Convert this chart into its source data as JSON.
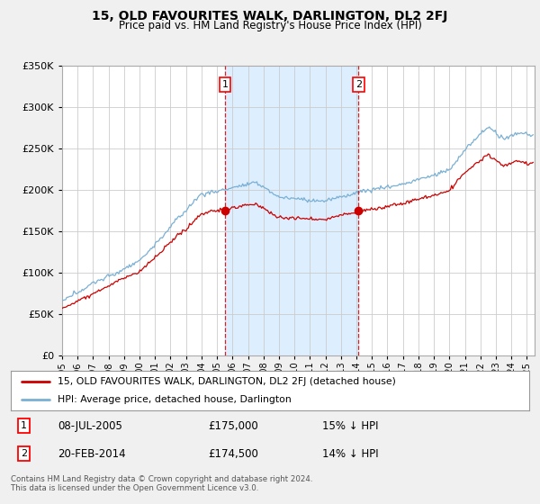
{
  "title": "15, OLD FAVOURITES WALK, DARLINGTON, DL2 2FJ",
  "subtitle": "Price paid vs. HM Land Registry's House Price Index (HPI)",
  "ylim": [
    0,
    350000
  ],
  "xlim_start": 1995.0,
  "xlim_end": 2025.5,
  "fig_bg": "#f0f0f0",
  "plot_bg": "#ffffff",
  "shade_bg": "#ddeeff",
  "grid_color": "#cccccc",
  "hpi_color": "#7ab0d4",
  "price_color": "#cc0000",
  "transaction1_x": 2005.52,
  "transaction1_price": 175000,
  "transaction2_x": 2014.13,
  "transaction2_price": 174500,
  "legend_line1": "15, OLD FAVOURITES WALK, DARLINGTON, DL2 2FJ (detached house)",
  "legend_line2": "HPI: Average price, detached house, Darlington",
  "annotation1_date": "08-JUL-2005",
  "annotation1_price": "£175,000",
  "annotation1_pct": "15% ↓ HPI",
  "annotation2_date": "20-FEB-2014",
  "annotation2_price": "£174,500",
  "annotation2_pct": "14% ↓ HPI",
  "footnote": "Contains HM Land Registry data © Crown copyright and database right 2024.\nThis data is licensed under the Open Government Licence v3.0.",
  "xtick_years": [
    1995,
    1996,
    1997,
    1998,
    1999,
    2000,
    2001,
    2002,
    2003,
    2004,
    2005,
    2006,
    2007,
    2008,
    2009,
    2010,
    2011,
    2012,
    2013,
    2014,
    2015,
    2016,
    2017,
    2018,
    2019,
    2020,
    2021,
    2022,
    2023,
    2024,
    2025
  ]
}
